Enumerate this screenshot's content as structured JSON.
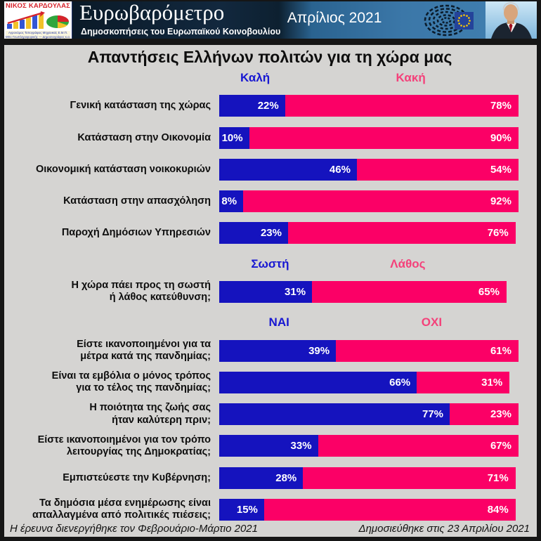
{
  "header": {
    "logo_name": "ΝΙΚΟΣ ΚΑΡΔΟΥΛΑΣ",
    "logo_sub1": "Αγρονόμος Τοπογράφος Μηχανικός Ε.Μ.Π.",
    "logo_sub2": "MSc Γεωπληροφορικής — Δημοσιογράφος κ.α.",
    "title": "Ευρωβαρόμετρο",
    "subtitle": "Δημοσκοπήσεις του Ευρωπαϊκού Κοινοβουλίου",
    "date": "Απρίλιος 2021",
    "icons": {
      "logo_art": "bar-chart-growth-logo",
      "eu_logo": "eu-parliament-hemicycle-logo",
      "portrait": "portrait-photo"
    }
  },
  "footer": {
    "left": "Η έρευνα διενεργήθηκε τον Φεβρουάριο-Μάρτιο 2021",
    "right": "Δημοσιεύθηκε στις 23 Απριλίου 2021"
  },
  "colors": {
    "bar_positive": "#1513BE",
    "bar_negative": "#FB0066",
    "header_positive_text": "#1717D2",
    "header_negative_text": "#F4417A",
    "background": "#D5D4D2"
  },
  "chart_data": {
    "type": "bar",
    "variant": "horizontal-stacked-percentage",
    "title": "Απαντήσεις Ελλήνων πολιτών για τη χώρα μας",
    "unit": "%",
    "xlim": [
      0,
      100
    ],
    "legend_position": "column-headers-above-bars",
    "grid": false,
    "sections": [
      {
        "positive_header": "Καλή",
        "negative_header": "Κακή",
        "header_pos": [
          12,
          64
        ],
        "rows": [
          {
            "label_lines": [
              "Γενική κατάσταση της χώρας"
            ],
            "positive": 22,
            "negative": 78
          },
          {
            "label_lines": [
              "Κατάσταση στην Οικονομία"
            ],
            "positive": 10,
            "negative": 90
          },
          {
            "label_lines": [
              "Οικονομική κατάσταση νοικοκυριών"
            ],
            "positive": 46,
            "negative": 54
          },
          {
            "label_lines": [
              "Κατάσταση στην απασχόληση"
            ],
            "positive": 8,
            "negative": 92
          },
          {
            "label_lines": [
              "Παροχή Δημόσιων Υπηρεσιών"
            ],
            "positive": 23,
            "negative": 76
          }
        ]
      },
      {
        "positive_header": "Σωστή",
        "negative_header": "Λάθος",
        "header_pos": [
          17,
          63
        ],
        "rows": [
          {
            "label_lines": [
              "Η χώρα πάει προς τη σωστή",
              "ή λάθος κατεύθυνση;"
            ],
            "positive": 31,
            "negative": 65
          }
        ]
      },
      {
        "positive_header": "ΝΑΙ",
        "negative_header": "ΟΧΙ",
        "header_pos": [
          20,
          71
        ],
        "rows": [
          {
            "label_lines": [
              "Είστε ικανοποιημένοι για τα",
              "μέτρα κατά της πανδημίας;"
            ],
            "positive": 39,
            "negative": 61
          },
          {
            "label_lines": [
              "Είναι τα εμβόλια ο μόνος τρόπος",
              "για το τέλος της πανδημίας;"
            ],
            "positive": 66,
            "negative": 31
          },
          {
            "label_lines": [
              "Η ποιότητα της ζωής σας",
              "ήταν καλύτερη πριν;"
            ],
            "positive": 77,
            "negative": 23
          },
          {
            "label_lines": [
              "Είστε ικανοποιημένοι για τον τρόπο",
              "λειτουργίας της Δημοκρατίας;"
            ],
            "positive": 33,
            "negative": 67
          },
          {
            "label_lines": [
              "Εμπιστεύεστε την Κυβέρνηση;"
            ],
            "positive": 28,
            "negative": 71
          },
          {
            "label_lines": [
              "Τα δημόσια μέσα ενημέρωσης είναι",
              "απαλλαγμένα από πολιτικές πιέσεις;"
            ],
            "positive": 15,
            "negative": 84
          }
        ]
      }
    ]
  }
}
